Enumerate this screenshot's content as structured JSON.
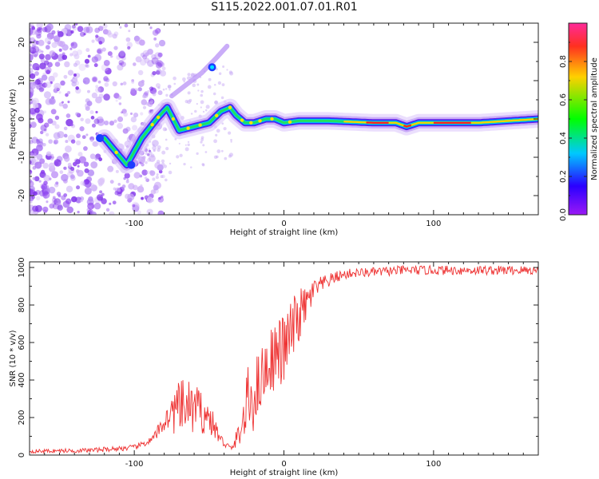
{
  "title": "S115.2022.001.07.01.R01",
  "chart_data": [
    {
      "type": "heatmap",
      "xlabel": "Height of straight line (km)",
      "ylabel": "Frequency (Hz)",
      "xlim": [
        -170,
        170
      ],
      "ylim": [
        -25,
        25
      ],
      "x_ticks": [
        -100,
        0,
        100
      ],
      "y_ticks": [
        -20,
        -10,
        0,
        10,
        20
      ],
      "colorbar": {
        "label": "Normalized spectral amplitude",
        "range": [
          0,
          1
        ],
        "ticks": [
          "0.0",
          "0.2",
          "0.4",
          "0.6",
          "0.8"
        ],
        "colormap": "gist_rainbow_r"
      },
      "ridge": {
        "x": [
          -120,
          -105,
          -95,
          -85,
          -78,
          -70,
          -60,
          -50,
          -42,
          -36,
          -32,
          -26,
          -20,
          -12,
          -6,
          0,
          10,
          30,
          60,
          75,
          82,
          90,
          100,
          130,
          170
        ],
        "freq": [
          -5,
          -12,
          -5,
          0,
          3,
          -3,
          -2,
          -1,
          2,
          3,
          1,
          -1,
          -1,
          0,
          0,
          -1,
          -0.5,
          -0.5,
          -1,
          -1,
          -2,
          -1,
          -1,
          -1,
          0
        ]
      },
      "branch": {
        "x": [
          -75,
          -65,
          -55,
          -45,
          -38
        ],
        "freq": [
          6,
          9,
          12,
          16,
          19
        ]
      }
    },
    {
      "type": "line",
      "xlabel": "Height of straight line (km)",
      "ylabel": "SNR (10 * v/v)",
      "xlim": [
        -170,
        170
      ],
      "ylim": [
        0,
        1030
      ],
      "x_ticks": [
        -100,
        0,
        100
      ],
      "y_ticks": [
        0,
        200,
        400,
        600,
        800,
        1000
      ],
      "color": "#ee3333",
      "series": [
        {
          "envelope_x": [
            -170,
            -130,
            -100,
            -88,
            -78,
            -72,
            -65,
            -58,
            -50,
            -42,
            -35,
            -28,
            -24,
            -20,
            -15,
            -8,
            0,
            5,
            10,
            15,
            20,
            28,
            35,
            45,
            60,
            80,
            100,
            130,
            170
          ],
          "envelope_y": [
            20,
            25,
            40,
            80,
            200,
            240,
            260,
            240,
            200,
            80,
            30,
            150,
            280,
            320,
            420,
            520,
            560,
            650,
            740,
            800,
            880,
            920,
            950,
            970,
            975,
            985,
            985,
            985,
            985
          ],
          "noise_amp": [
            10,
            12,
            15,
            20,
            60,
            140,
            150,
            130,
            90,
            30,
            15,
            80,
            200,
            200,
            160,
            180,
            200,
            180,
            150,
            100,
            60,
            40,
            30,
            25,
            25,
            25,
            25,
            25,
            25
          ]
        }
      ]
    }
  ]
}
